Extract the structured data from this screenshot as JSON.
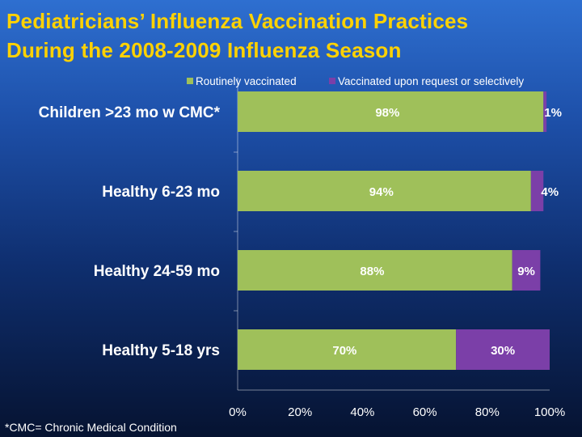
{
  "title_lines": [
    "Pediatricians’ Influenza Vaccination Practices",
    "During the 2008-2009 Influenza Season"
  ],
  "footnote": "*CMC= Chronic Medical Condition",
  "colors": {
    "title": "#ffd200",
    "routine": "#9fc05a",
    "request": "#7b3fa8",
    "category_text": "#ffffff",
    "value_text": "#ffffff",
    "axis": "#ffffff"
  },
  "chart_data": {
    "type": "bar",
    "orientation": "horizontal",
    "stacked": true,
    "categories": [
      "Children >23 mo w CMC*",
      "Healthy 6-23 mo",
      "Healthy 24-59 mo",
      "Healthy 5-18 yrs"
    ],
    "series": [
      {
        "name": "Routinely vaccinated",
        "values": [
          98,
          94,
          88,
          70
        ],
        "labels": [
          "98%",
          "94%",
          "88%",
          "70%"
        ]
      },
      {
        "name": "Vaccinated upon request or selectively",
        "values": [
          1,
          4,
          9,
          30
        ],
        "labels": [
          "1%",
          "4%",
          "9%",
          "30%"
        ]
      }
    ],
    "x_ticks": [
      "0%",
      "20%",
      "40%",
      "60%",
      "80%",
      "100%"
    ],
    "xlim": [
      0,
      100
    ],
    "legend_position": "top",
    "grid": false
  }
}
